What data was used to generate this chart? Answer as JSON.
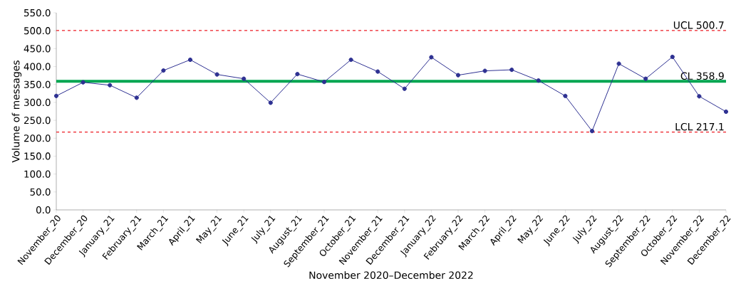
{
  "chart_data": {
    "type": "line",
    "xlabel": "November 2020–December 2022",
    "ylabel": "Volume of messages",
    "categories": [
      "November_20",
      "December_20",
      "January_21",
      "February_21",
      "March_21",
      "April_21",
      "May_21",
      "June_21",
      "July_21",
      "August_21",
      "September_21",
      "October_21",
      "November_21",
      "December_21",
      "January_22",
      "February_22",
      "March_22",
      "April_22",
      "May_22",
      "June_22",
      "July_22",
      "August_22",
      "September_22",
      "October_22",
      "November_22",
      "December_22"
    ],
    "series": [
      {
        "color": "#2e3192",
        "values": [
          318,
          356,
          348,
          313,
          389,
          419,
          378,
          366,
          299,
          379,
          357,
          419,
          386,
          338,
          426,
          376,
          388,
          391,
          361,
          318,
          220,
          408,
          366,
          427,
          317,
          274
        ]
      }
    ],
    "ylim": [
      0,
      550
    ],
    "yticks": [
      {
        "value": 0,
        "label": "0.0"
      },
      {
        "value": 50,
        "label": "50.0"
      },
      {
        "value": 100,
        "label": "100.0"
      },
      {
        "value": 150,
        "label": "150.0"
      },
      {
        "value": 200,
        "label": "200.0"
      },
      {
        "value": 250,
        "label": "250.0"
      },
      {
        "value": 300,
        "label": "300.0"
      },
      {
        "value": 350,
        "label": "350.0"
      },
      {
        "value": 400,
        "label": "400.0"
      },
      {
        "value": 450,
        "label": "450.0"
      },
      {
        "value": 500,
        "label": "500.0"
      },
      {
        "value": 550,
        "label": "550.0"
      }
    ],
    "ref_lines": [
      {
        "axis": "y",
        "value": 500.7,
        "label": "UCL 500.7",
        "color": "#ed1c24",
        "line_style": "dashed"
      },
      {
        "axis": "y",
        "value": 358.9,
        "label": "CL 358.9",
        "color": "#00a651",
        "line_style": "solid"
      },
      {
        "axis": "y",
        "value": 217.1,
        "label": "LCL 217.1",
        "color": "#ed1c24",
        "line_style": "dashed"
      }
    ],
    "marker": "circle",
    "line_style": "solid",
    "grid": false
  }
}
